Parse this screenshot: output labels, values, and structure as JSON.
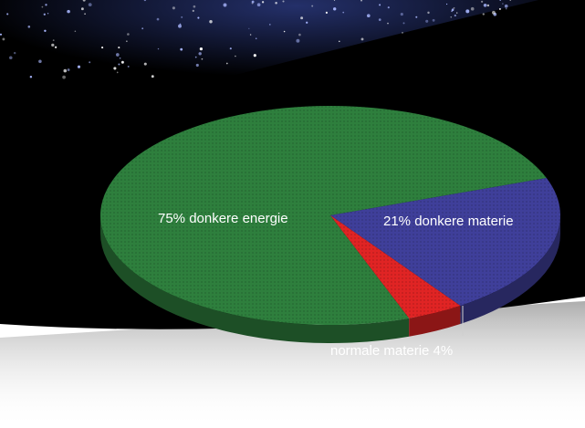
{
  "chart_data": {
    "type": "pie",
    "style": "3d",
    "title": "",
    "slices": [
      {
        "label": "75% donkere energie",
        "value": 75,
        "color": "#2e7f3d"
      },
      {
        "label": "21% donkere materie",
        "value": 21,
        "color": "#3f3f9a"
      },
      {
        "label": "normale materie 4%",
        "value": 4,
        "color": "#e02424"
      }
    ],
    "background": "starfield",
    "background_color": "#000000"
  }
}
